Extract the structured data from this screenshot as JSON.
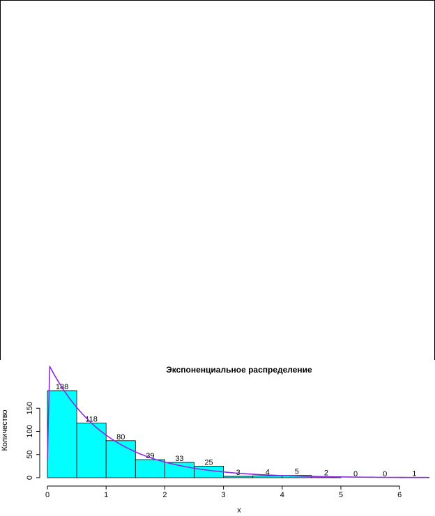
{
  "chart_data": {
    "type": "bar",
    "title": "Экспоненциальное распределение",
    "xlabel": "x",
    "ylabel": "Количество",
    "bins": [
      {
        "x0": 0.0,
        "x1": 0.5,
        "count": 188,
        "label": "188"
      },
      {
        "x0": 0.5,
        "x1": 1.0,
        "count": 118,
        "label": "118"
      },
      {
        "x0": 1.0,
        "x1": 1.5,
        "count": 80,
        "label": "80"
      },
      {
        "x0": 1.5,
        "x1": 2.0,
        "count": 39,
        "label": "39"
      },
      {
        "x0": 2.0,
        "x1": 2.5,
        "count": 33,
        "label": "33"
      },
      {
        "x0": 2.5,
        "x1": 3.0,
        "count": 25,
        "label": "25"
      },
      {
        "x0": 3.0,
        "x1": 3.5,
        "count": 3,
        "label": "3"
      },
      {
        "x0": 3.5,
        "x1": 4.0,
        "count": 4,
        "label": "4"
      },
      {
        "x0": 4.0,
        "x1": 4.5,
        "count": 5,
        "label": "5"
      },
      {
        "x0": 4.5,
        "x1": 5.0,
        "count": 2,
        "label": "2"
      },
      {
        "x0": 5.0,
        "x1": 5.5,
        "count": 0,
        "label": "0"
      },
      {
        "x0": 5.5,
        "x1": 6.0,
        "count": 0,
        "label": "0"
      },
      {
        "x0": 6.0,
        "x1": 6.5,
        "count": 1,
        "label": "1"
      }
    ],
    "xlim": [
      0,
      6.5
    ],
    "ylim": [
      0,
      195
    ],
    "x_ticks": [
      0,
      1,
      2,
      3,
      4,
      5,
      6
    ],
    "y_ticks": [
      0,
      50,
      100,
      150
    ],
    "density_curve": {
      "type": "exponential",
      "rate": 1.0,
      "scale": 250,
      "peak_x": 0.04,
      "x_end": 6.5,
      "color": "#8a2be2"
    },
    "bar_fill": "#00ffff",
    "bar_stroke": "#000000",
    "legend": "none",
    "grid": false
  }
}
